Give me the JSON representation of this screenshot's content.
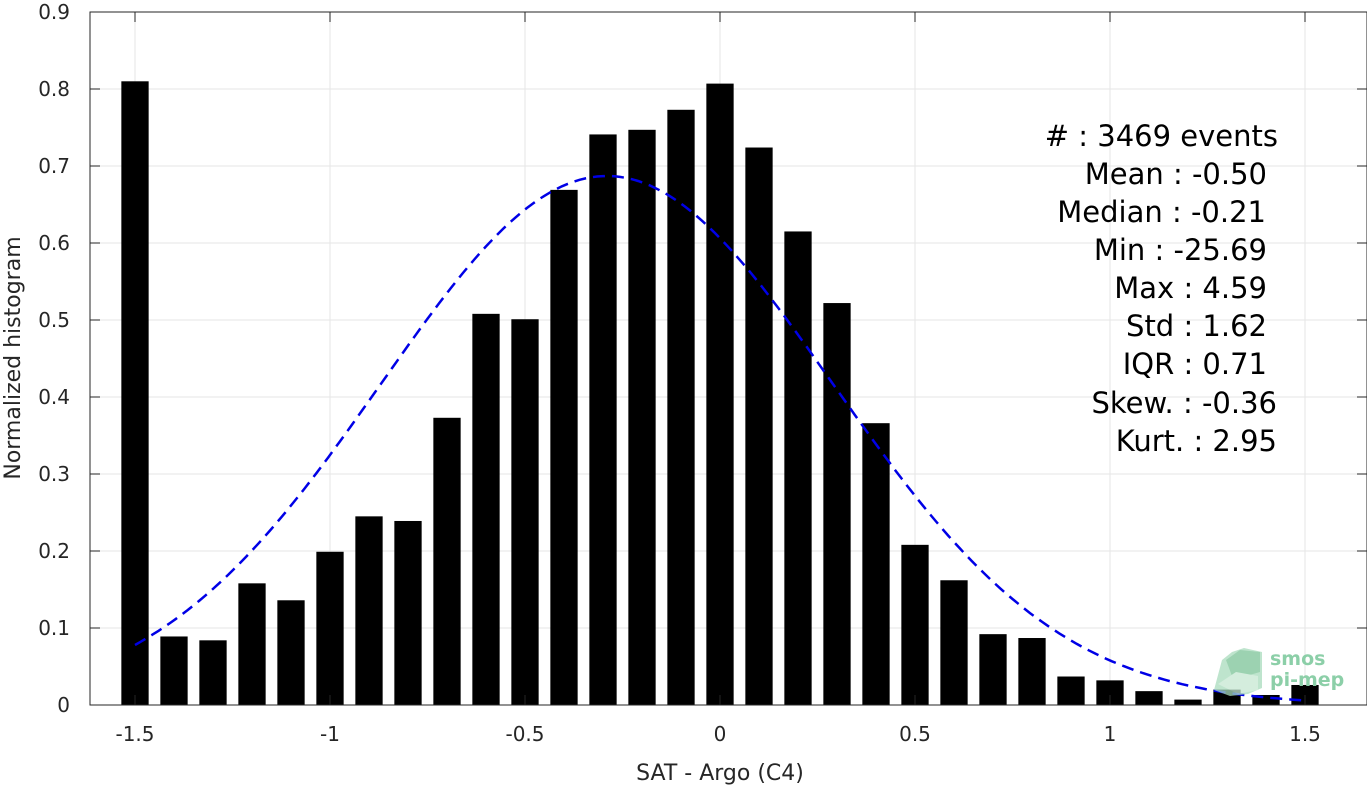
{
  "chart_data": {
    "type": "bar",
    "title": "",
    "xlabel": "SAT - Argo (C4)",
    "ylabel": "Normalized histogram",
    "xlim": [
      -1.6,
      1.6
    ],
    "ylim": [
      0,
      0.9
    ],
    "grid": true,
    "x_ticks": [
      -1.5,
      -1,
      -0.5,
      0,
      0.5,
      1,
      1.5
    ],
    "x_tick_labels": [
      "-1.5",
      "-1",
      "-0.5",
      "0",
      "0.5",
      "1",
      "1.5"
    ],
    "y_ticks": [
      0,
      0.1,
      0.2,
      0.3,
      0.4,
      0.5,
      0.6,
      0.7,
      0.8,
      0.9
    ],
    "y_tick_labels": [
      "0",
      "0.1",
      "0.2",
      "0.3",
      "0.4",
      "0.5",
      "0.6",
      "0.7",
      "0.8",
      "0.9"
    ],
    "bar_width": 0.07,
    "bar_color": "#000000",
    "bins": [
      -1.5,
      -1.4,
      -1.3,
      -1.2,
      -1.1,
      -1.0,
      -0.9,
      -0.8,
      -0.7,
      -0.6,
      -0.5,
      -0.4,
      -0.3,
      -0.2,
      -0.1,
      0.0,
      0.1,
      0.2,
      0.3,
      0.4,
      0.5,
      0.6,
      0.7,
      0.8,
      0.9,
      1.0,
      1.1,
      1.2,
      1.3,
      1.4,
      1.5
    ],
    "values": [
      0.81,
      0.089,
      0.084,
      0.158,
      0.136,
      0.199,
      0.245,
      0.239,
      0.373,
      0.508,
      0.501,
      0.669,
      0.741,
      0.747,
      0.773,
      0.807,
      0.724,
      0.615,
      0.522,
      0.366,
      0.208,
      0.162,
      0.092,
      0.087,
      0.037,
      0.032,
      0.018,
      0.007,
      0.02,
      0.013,
      0.026
    ],
    "fit_curve": {
      "style": "dashed",
      "color": "#0000e6",
      "mean": -0.29,
      "std": 0.58,
      "peak": 0.687,
      "x_range": [
        -1.5,
        1.5
      ]
    },
    "annotations": [
      {
        "label": "#",
        "value": ": 3469 events"
      },
      {
        "label": "Mean",
        "value": ": -0.50"
      },
      {
        "label": "Median",
        "value": ": -0.21"
      },
      {
        "label": "Min",
        "value": ": -25.69"
      },
      {
        "label": "Max",
        "value": ": 4.59"
      },
      {
        "label": "Std",
        "value": ": 1.62"
      },
      {
        "label": "IQR",
        "value": ": 0.71"
      },
      {
        "label": "Skew.",
        "value": ": -0.36"
      },
      {
        "label": "Kurt.",
        "value": ": 2.95"
      }
    ]
  },
  "logo": {
    "line1": "smos",
    "line2": "pi-mep",
    "color": "#8ccfa8"
  }
}
